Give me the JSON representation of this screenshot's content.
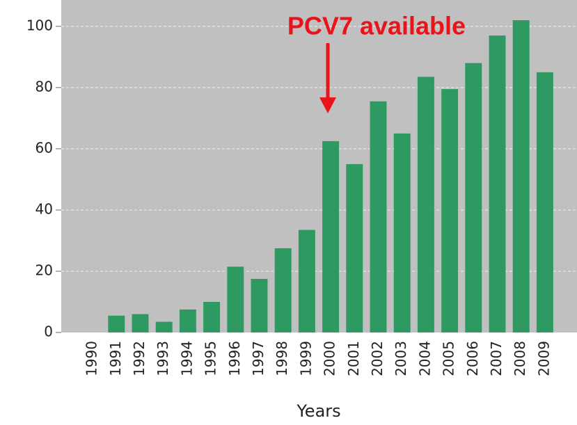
{
  "chart_data": {
    "type": "bar",
    "x_label": "Years",
    "annotation": "PCV7 available",
    "categories": [
      "1990",
      "1991",
      "1992",
      "1993",
      "1994",
      "1995",
      "1996",
      "1997",
      "1998",
      "1999",
      "2000",
      "2001",
      "2002",
      "2003",
      "2004",
      "2005",
      "2006",
      "2007",
      "2008",
      "2009"
    ],
    "values": [
      0,
      5.5,
      6,
      3.5,
      7.5,
      10,
      21.5,
      17.5,
      27.5,
      33.5,
      62.5,
      55,
      75.5,
      65,
      83.5,
      79.5,
      88,
      97,
      102,
      85
    ],
    "color": "#2e9a62",
    "ylim": [
      0,
      108.6
    ],
    "yticks": [
      0,
      20,
      40,
      60,
      80,
      100
    ],
    "grid": true
  }
}
